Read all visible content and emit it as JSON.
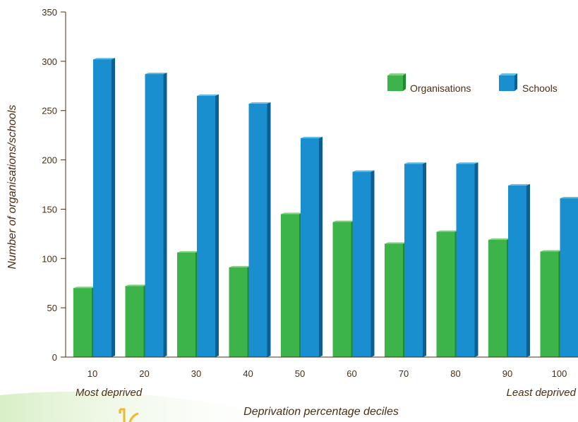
{
  "chart_data": {
    "type": "bar",
    "categories": [
      "10",
      "20",
      "30",
      "40",
      "50",
      "60",
      "70",
      "80",
      "90",
      "100"
    ],
    "series": [
      {
        "name": "Organisations",
        "color": "#3cb449",
        "values": [
          70,
          72,
          106,
          91,
          145,
          137,
          115,
          127,
          119,
          107
        ]
      },
      {
        "name": "Schools",
        "color": "#1a8fd0",
        "values": [
          302,
          287,
          265,
          257,
          222,
          188,
          196,
          196,
          174,
          161
        ]
      }
    ],
    "xlabel": "Deprivation percentage deciles",
    "ylabel": "Number of organisations/schools",
    "ylim": [
      0,
      350
    ],
    "yticks": [
      "0",
      "50",
      "100",
      "150",
      "200",
      "250",
      "300",
      "350"
    ],
    "x_notes": {
      "left": "Most deprived",
      "right": "Least deprived"
    },
    "legend_position": "top-right",
    "grid": false
  }
}
